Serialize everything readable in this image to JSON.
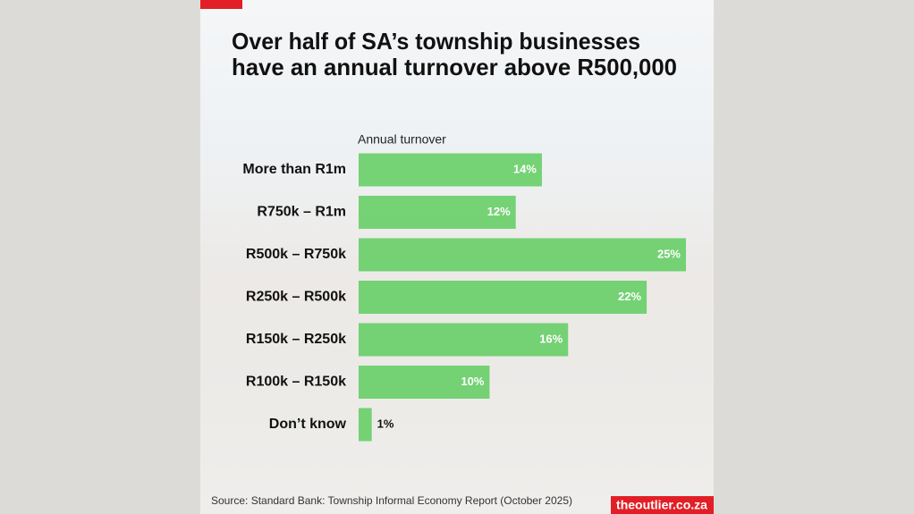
{
  "chart_data": {
    "type": "bar",
    "orientation": "horizontal",
    "title": [
      "Over half of SA’s township businesses",
      "have an annual turnover above R500,000"
    ],
    "axis_label": "Annual turnover",
    "categories": [
      "More than R1m",
      "R750k – R1m",
      "R500k – R750k",
      "R250k – R500k",
      "R150k – R250k",
      "R100k – R150k",
      "Don’t know"
    ],
    "values": [
      14,
      12,
      25,
      22,
      16,
      10,
      1
    ],
    "value_labels": [
      "14%",
      "12%",
      "25%",
      "22%",
      "16%",
      "10%",
      "1%"
    ],
    "color": "#5fcd5f",
    "source": "Source: Standard Bank: Township Informal Economy Report (October 2025)",
    "brand": "theoutlier.co.za"
  }
}
